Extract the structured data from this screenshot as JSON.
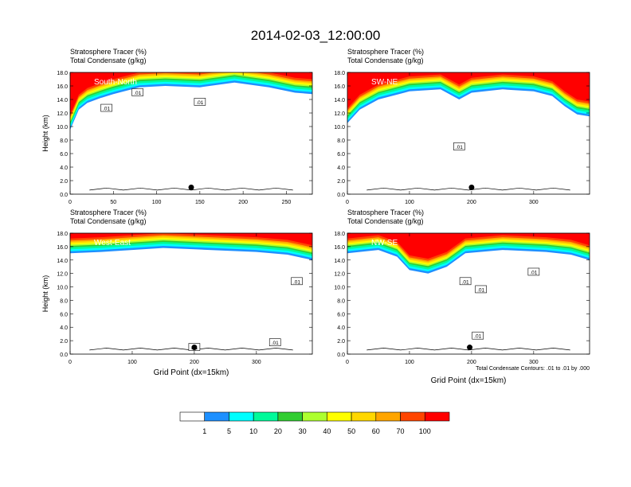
{
  "title": "2014-02-03_12:00:00",
  "panel_header": {
    "line1": "Stratosphere Tracer   (%)",
    "line2": "Total Condensate   (g/kg)"
  },
  "ylabel": "Height (km)",
  "xlabel": "Grid Point (dx=15km)",
  "contour_note": "Total Condensate Contours: .01 to .01 by .000",
  "contour_label": ".01",
  "colorbar": {
    "colors": [
      "#ffffff",
      "#1e90ff",
      "#00ffff",
      "#00fa9a",
      "#32cd32",
      "#adff2f",
      "#ffff00",
      "#ffd700",
      "#ffa500",
      "#ff4500",
      "#ff0000"
    ],
    "labels": [
      "1",
      "5",
      "10",
      "20",
      "30",
      "40",
      "50",
      "60",
      "70",
      "100"
    ]
  },
  "chart_data": [
    {
      "type": "heatmap",
      "name": "South-North",
      "title": "Stratosphere Tracer (%) / Total Condensate (g/kg)",
      "xlabel": "",
      "ylabel": "Height (km)",
      "xlim": [
        0,
        280
      ],
      "ylim": [
        0,
        18
      ],
      "xticks": [
        "0",
        "50",
        "100",
        "150",
        "200",
        "250"
      ],
      "yticks": [
        "0.0",
        "2.0",
        "4.0",
        "6.0",
        "8.0",
        "10.0",
        "12.0",
        "14.0",
        "16.0",
        "18.0"
      ],
      "tracer_base_km": [
        [
          0,
          9.5
        ],
        [
          10,
          12.5
        ],
        [
          20,
          13.5
        ],
        [
          35,
          14.2
        ],
        [
          50,
          14.8
        ],
        [
          80,
          15.8
        ],
        [
          110,
          16.0
        ],
        [
          150,
          15.8
        ],
        [
          190,
          16.5
        ],
        [
          230,
          15.8
        ],
        [
          260,
          15.0
        ],
        [
          280,
          14.8
        ]
      ],
      "contour_labels": [
        [
          78,
          15.0
        ],
        [
          150,
          13.6
        ],
        [
          42,
          12.7
        ]
      ],
      "point": [
        140,
        1.0
      ]
    },
    {
      "type": "heatmap",
      "name": "SW-NE",
      "title": "Stratosphere Tracer (%) / Total Condensate (g/kg)",
      "xlabel": "",
      "ylabel": "",
      "xlim": [
        0,
        390
      ],
      "ylim": [
        0,
        18
      ],
      "xticks": [
        "0",
        "100",
        "200",
        "300"
      ],
      "yticks": [
        "0.0",
        "2.0",
        "4.0",
        "6.0",
        "8.0",
        "10.0",
        "12.0",
        "14.0",
        "16.0",
        "18.0"
      ],
      "tracer_base_km": [
        [
          0,
          10.5
        ],
        [
          20,
          12.5
        ],
        [
          50,
          14.0
        ],
        [
          100,
          15.2
        ],
        [
          150,
          15.5
        ],
        [
          180,
          14.0
        ],
        [
          200,
          15.0
        ],
        [
          250,
          15.5
        ],
        [
          300,
          15.2
        ],
        [
          330,
          14.5
        ],
        [
          350,
          13.0
        ],
        [
          370,
          11.8
        ],
        [
          390,
          11.5
        ]
      ],
      "contour_labels": [
        [
          180,
          7.0
        ]
      ],
      "point": [
        200,
        1.0
      ]
    },
    {
      "type": "heatmap",
      "name": "West-East",
      "title": "Stratosphere Tracer (%) / Total Condensate (g/kg)",
      "xlabel": "Grid Point (dx=15km)",
      "ylabel": "Height (km)",
      "xlim": [
        0,
        390
      ],
      "ylim": [
        0,
        18
      ],
      "xticks": [
        "0",
        "100",
        "200",
        "300"
      ],
      "yticks": [
        "0.0",
        "2.0",
        "4.0",
        "6.0",
        "8.0",
        "10.0",
        "12.0",
        "14.0",
        "16.0",
        "18.0"
      ],
      "tracer_base_km": [
        [
          0,
          15.0
        ],
        [
          50,
          15.2
        ],
        [
          100,
          15.5
        ],
        [
          150,
          15.8
        ],
        [
          200,
          15.6
        ],
        [
          250,
          15.4
        ],
        [
          300,
          15.2
        ],
        [
          350,
          14.8
        ],
        [
          390,
          14.0
        ]
      ],
      "contour_labels": [
        [
          365,
          10.8
        ],
        [
          330,
          1.7
        ],
        [
          200,
          1.0
        ]
      ],
      "point": [
        200,
        1.0
      ]
    },
    {
      "type": "heatmap",
      "name": "NW-SE",
      "title": "Stratosphere Tracer (%) / Total Condensate (g/kg)",
      "xlabel": "Grid Point (dx=15km)",
      "ylabel": "",
      "xlim": [
        0,
        390
      ],
      "ylim": [
        0,
        18
      ],
      "xticks": [
        "0",
        "100",
        "200",
        "300"
      ],
      "yticks": [
        "0.0",
        "2.0",
        "4.0",
        "6.0",
        "8.0",
        "10.0",
        "12.0",
        "14.0",
        "16.0",
        "18.0"
      ],
      "tracer_base_km": [
        [
          0,
          15.0
        ],
        [
          50,
          15.5
        ],
        [
          80,
          14.5
        ],
        [
          100,
          12.5
        ],
        [
          130,
          12.0
        ],
        [
          160,
          13.0
        ],
        [
          190,
          15.0
        ],
        [
          250,
          15.5
        ],
        [
          320,
          15.2
        ],
        [
          360,
          14.8
        ],
        [
          390,
          14.0
        ]
      ],
      "contour_labels": [
        [
          190,
          10.8
        ],
        [
          215,
          9.6
        ],
        [
          300,
          12.2
        ],
        [
          210,
          2.7
        ]
      ],
      "point": [
        197,
        1.0
      ]
    }
  ]
}
